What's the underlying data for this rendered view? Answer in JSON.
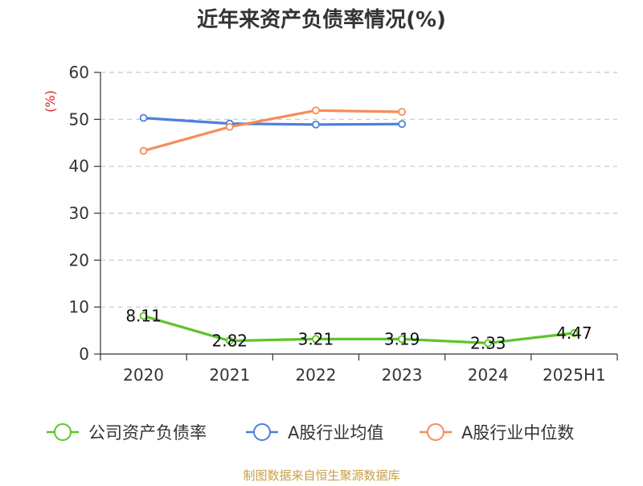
{
  "chart_data": {
    "type": "line",
    "title": "近年来资产负债率情况(%)",
    "xlabel": "",
    "ylabel": "(%)",
    "categories": [
      "2020",
      "2021",
      "2022",
      "2023",
      "2024",
      "2025H1"
    ],
    "ylim": [
      0,
      60
    ],
    "yticks": [
      0,
      10,
      20,
      30,
      40,
      50,
      60
    ],
    "grid": true,
    "legend_position": "bottom",
    "series": [
      {
        "name": "公司资产负债率",
        "color": "#5cc528",
        "values": [
          8.11,
          2.82,
          3.21,
          3.19,
          2.33,
          4.47
        ],
        "labels": [
          "8.11",
          "2.82",
          "3.21",
          "3.19",
          "2.33",
          "4.47"
        ]
      },
      {
        "name": "A股行业均值",
        "color": "#4e7fdc",
        "values": [
          50.3,
          49.1,
          48.9,
          49.0,
          null,
          null
        ]
      },
      {
        "name": "A股行业中位数",
        "color": "#f68c59",
        "values": [
          43.3,
          48.4,
          51.9,
          51.6,
          null,
          null
        ]
      }
    ]
  },
  "source": "制图数据来自恒生聚源数据库"
}
